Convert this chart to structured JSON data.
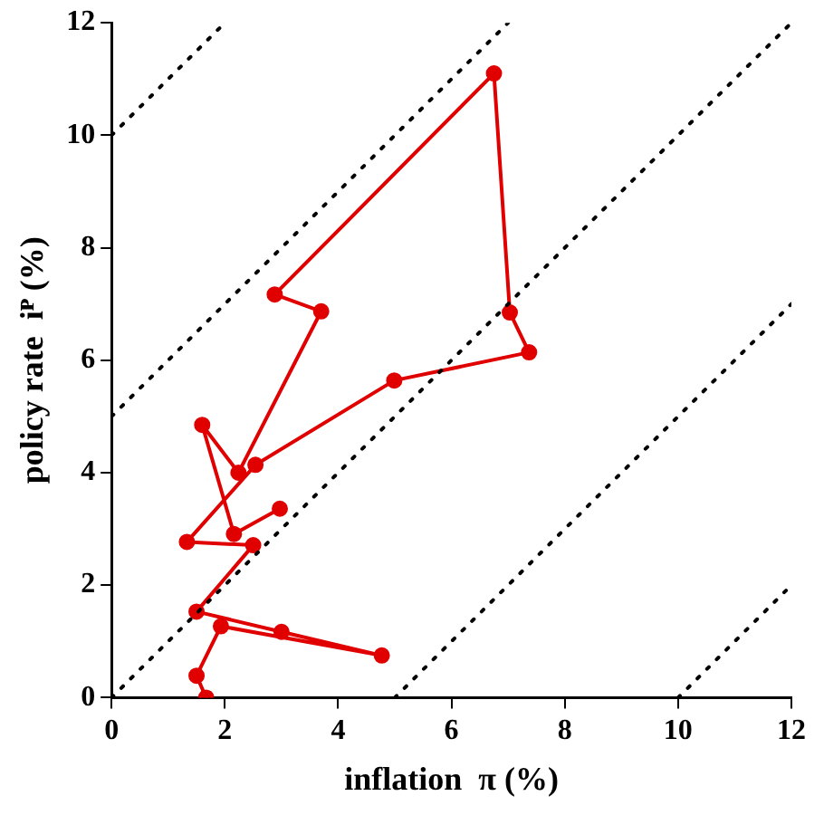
{
  "chart_data": {
    "type": "line",
    "xlabel": "inflation  π (%)",
    "ylabel": "policy rate  iᴾ (%)",
    "xlim": [
      0,
      12
    ],
    "ylim": [
      0,
      12
    ],
    "xticks": [
      0,
      2,
      4,
      6,
      8,
      10,
      12
    ],
    "yticks": [
      0,
      2,
      4,
      6,
      8,
      10,
      12
    ],
    "grid": false,
    "legend": false,
    "series": [
      {
        "color": "#000000",
        "line_style": "dotted",
        "marker": "none",
        "x": [
          0,
          2
        ],
        "values": [
          10,
          12
        ]
      },
      {
        "color": "#000000",
        "line_style": "dotted",
        "marker": "none",
        "x": [
          0,
          7
        ],
        "values": [
          5,
          12
        ]
      },
      {
        "color": "#000000",
        "line_style": "dotted",
        "marker": "none",
        "x": [
          0,
          12
        ],
        "values": [
          0,
          12
        ]
      },
      {
        "color": "#000000",
        "line_style": "dotted",
        "marker": "none",
        "x": [
          5,
          12
        ],
        "values": [
          0,
          7
        ]
      },
      {
        "color": "#000000",
        "line_style": "dotted",
        "marker": "none",
        "x": [
          10,
          12
        ],
        "values": [
          0,
          2
        ]
      },
      {
        "color": "#e00000",
        "line_style": "solid",
        "marker": "circle",
        "x": [
          1.67,
          1.5,
          1.93,
          4.77,
          3.0,
          1.5,
          2.5,
          1.33,
          2.54,
          4.99,
          7.37,
          7.03,
          6.75,
          2.88,
          3.7,
          2.24,
          1.6,
          2.16,
          2.97
        ],
        "values": [
          0,
          0.39,
          1.27,
          0.75,
          1.17,
          1.53,
          2.71,
          2.77,
          4.14,
          5.64,
          6.14,
          6.85,
          11.1,
          7.17,
          6.87,
          4.0,
          4.85,
          2.91,
          3.36
        ]
      }
    ]
  }
}
